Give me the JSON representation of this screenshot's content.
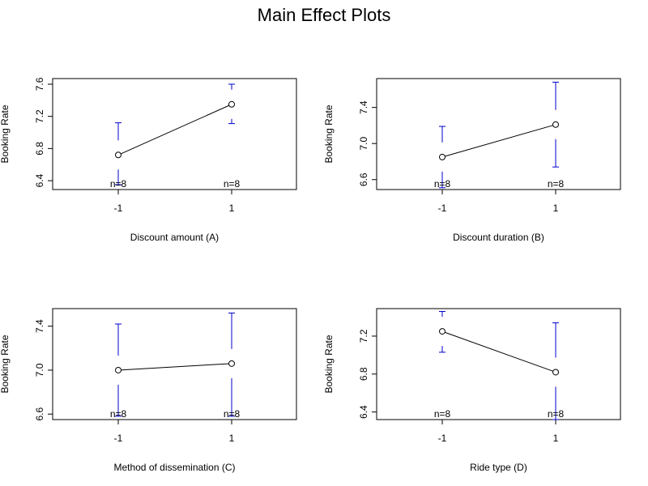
{
  "title": "Main Effect Plots",
  "chart_data": [
    {
      "type": "line",
      "xlabel": "Discount amount (A)",
      "ylabel": "Booking Rate",
      "x": [
        "-1",
        "1"
      ],
      "values": [
        6.72,
        7.35
      ],
      "error_low": [
        6.35,
        7.11
      ],
      "error_high": [
        7.12,
        7.6
      ],
      "ylim": [
        6.29,
        7.67
      ],
      "yticks": [
        "6.4",
        "6.8",
        "7.2",
        "7.6"
      ],
      "counts": [
        "n=8",
        "n=8"
      ],
      "line_color": "#000000",
      "error_color": "#0000cc"
    },
    {
      "type": "line",
      "xlabel": "Discount duration (B)",
      "ylabel": "Booking Rate",
      "x": [
        "-1",
        "1"
      ],
      "values": [
        6.85,
        7.21
      ],
      "error_low": [
        6.51,
        6.74
      ],
      "error_high": [
        7.19,
        7.68
      ],
      "ylim": [
        6.49,
        7.72
      ],
      "yticks": [
        "6.6",
        "7.0",
        "7.4"
      ],
      "counts": [
        "n=8",
        "n=8"
      ],
      "line_color": "#000000",
      "error_color": "#0000cc"
    },
    {
      "type": "line",
      "xlabel": "Method of dissemination (C)",
      "ylabel": "Booking Rate",
      "x": [
        "-1",
        "1"
      ],
      "values": [
        7.0,
        7.06
      ],
      "error_low": [
        6.58,
        6.58
      ],
      "error_high": [
        7.42,
        7.52
      ],
      "ylim": [
        6.55,
        7.56
      ],
      "yticks": [
        "6.6",
        "7.0",
        "7.4"
      ],
      "counts": [
        "n=8",
        "n=8"
      ],
      "line_color": "#000000",
      "error_color": "#0000cc"
    },
    {
      "type": "line",
      "xlabel": "Ride type (D)",
      "ylabel": "Booking Rate",
      "x": [
        "-1",
        "1"
      ],
      "values": [
        7.25,
        6.82
      ],
      "error_low": [
        7.03,
        6.32
      ],
      "error_high": [
        7.46,
        7.34
      ],
      "ylim": [
        6.32,
        7.49
      ],
      "yticks": [
        "6.4",
        "6.8",
        "7.2"
      ],
      "counts": [
        "n=8",
        "n=8"
      ],
      "line_color": "#000000",
      "error_color": "#0000cc"
    }
  ]
}
